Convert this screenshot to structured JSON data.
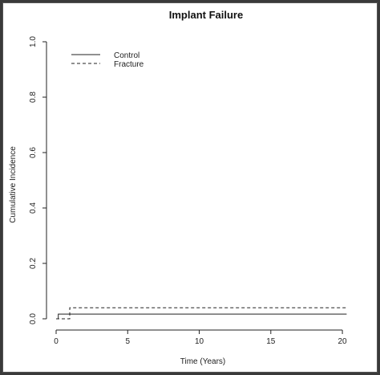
{
  "chart_data": {
    "type": "line",
    "step": true,
    "title": "Implant Failure",
    "xlabel": "Time (Years)",
    "ylabel": "Cumulative Incidence",
    "xlim": [
      0,
      20.5
    ],
    "ylim": [
      0,
      1.0
    ],
    "xticks": [
      "0",
      "5",
      "10",
      "15",
      "20"
    ],
    "xtick_values": [
      0,
      5,
      10,
      15,
      20
    ],
    "yticks": [
      "0.0",
      "0.2",
      "0.4",
      "0.6",
      "0.8",
      "1.0"
    ],
    "ytick_values": [
      0.0,
      0.2,
      0.4,
      0.6,
      0.8,
      1.0
    ],
    "grid": false,
    "legend_position": "top-left",
    "series": [
      {
        "name": "Control",
        "line_style": "solid",
        "x": [
          0,
          0.15,
          0.15,
          20.3
        ],
        "y": [
          0,
          0,
          0.017,
          0.017
        ]
      },
      {
        "name": "Fracture",
        "line_style": "dashed",
        "x": [
          0,
          0.95,
          0.95,
          20.3
        ],
        "y": [
          0,
          0,
          0.04,
          0.04
        ]
      }
    ]
  }
}
